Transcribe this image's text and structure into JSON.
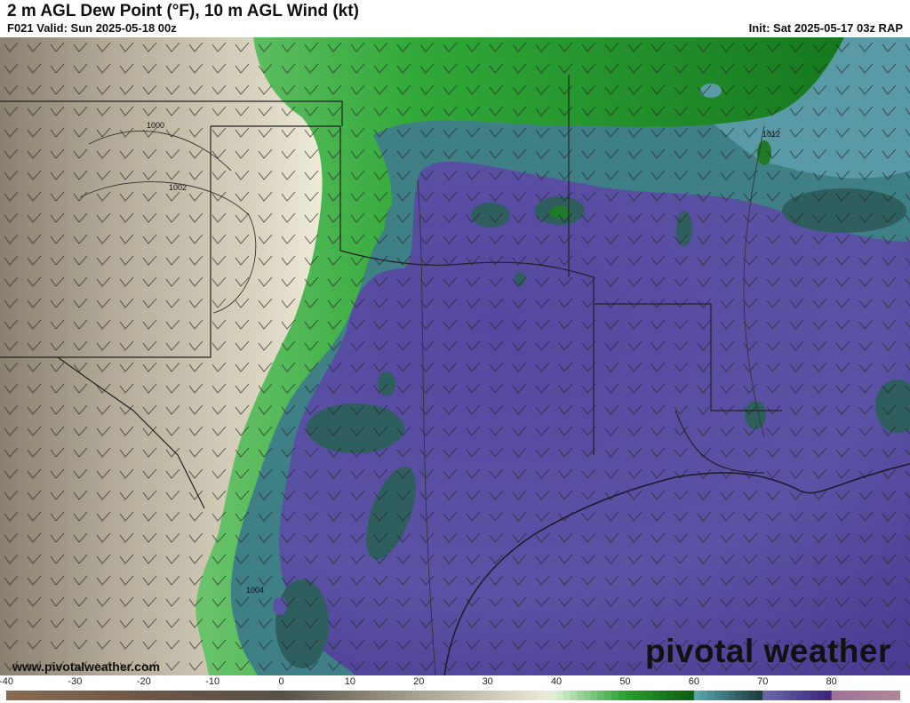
{
  "header": {
    "title": "2 m AGL Dew Point (°F), 10 m AGL Wind (kt)",
    "valid": "F021 Valid: Sun 2025-05-18 00z",
    "init": "Init: Sat 2025-05-17 03z RAP"
  },
  "map": {
    "isobar_labels": [
      "1000",
      "1002",
      "1004",
      "1012"
    ],
    "website": "www.pivotalweather.com",
    "logo": "pivotal weather"
  },
  "colorbar": {
    "unit": "°F",
    "range": [
      -40,
      90
    ],
    "tick_labels": [
      "-40",
      "-30",
      "-20",
      "-10",
      "0",
      "10",
      "20",
      "30",
      "40",
      "50",
      "60",
      "70",
      "80"
    ],
    "stops": [
      {
        "value": -40,
        "color": "#8a6a50"
      },
      {
        "value": -20,
        "color": "#6e5645"
      },
      {
        "value": 0,
        "color": "#575048"
      },
      {
        "value": 20,
        "color": "#a8a290"
      },
      {
        "value": 39,
        "color": "#eeebd8"
      },
      {
        "value": 40,
        "color": "#d8efd0"
      },
      {
        "value": 50,
        "color": "#28a030"
      },
      {
        "value": 59.9,
        "color": "#0b5e12"
      },
      {
        "value": 60,
        "color": "#5aa8b4"
      },
      {
        "value": 69.9,
        "color": "#1c3c3c"
      },
      {
        "value": 70,
        "color": "#6a68b0"
      },
      {
        "value": 79.9,
        "color": "#3a2478"
      },
      {
        "value": 80,
        "color": "#a07098"
      },
      {
        "value": 90,
        "color": "#b08898"
      }
    ]
  }
}
